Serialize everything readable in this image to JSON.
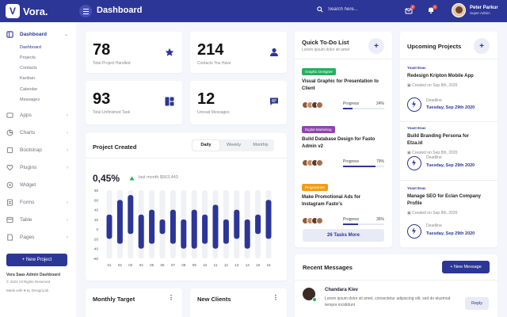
{
  "app": {
    "logo_letter": "V",
    "name": "Vora."
  },
  "header": {
    "title": "Dashboard",
    "search_placeholder": "Search here...",
    "notif_count": "2",
    "alert_count": "1",
    "user_name": "Peter Parkur",
    "user_role": "Super Admin"
  },
  "sidebar": {
    "items": [
      {
        "label": "Dashboard",
        "icon": "home-icon",
        "active": true
      },
      {
        "label": "Apps",
        "icon": "apps-icon"
      },
      {
        "label": "Charts",
        "icon": "chart-icon"
      },
      {
        "label": "Bootstrap",
        "icon": "bootstrap-icon"
      },
      {
        "label": "Plugins",
        "icon": "heart-icon"
      },
      {
        "label": "Widget",
        "icon": "widget-icon"
      },
      {
        "label": "Forms",
        "icon": "forms-icon"
      },
      {
        "label": "Table",
        "icon": "table-icon"
      },
      {
        "label": "Pages",
        "icon": "pages-icon"
      }
    ],
    "subitems": [
      "Dashboard",
      "Projects",
      "Contacts",
      "Kanban",
      "Calendar",
      "Messages"
    ],
    "new_project": "+ New Project",
    "footer_title": "Vora Saas Admin Dashboard",
    "footer_copy": "© 2022 All Rights Reserved",
    "footer_made": "Made with ♥ by DesignLab"
  },
  "stats": [
    {
      "value": "78",
      "label": "Total Project Handled",
      "icon": "star-icon"
    },
    {
      "value": "214",
      "label": "Contacts You Have",
      "icon": "user-icon"
    },
    {
      "value": "93",
      "label": "Total Unfinished Task",
      "icon": "grid-icon"
    },
    {
      "value": "12",
      "label": "Unread Messages",
      "icon": "message-icon"
    }
  ],
  "project_created": {
    "title": "Project Created",
    "tabs": [
      "Daily",
      "Weekly",
      "Monthly"
    ],
    "active_tab": "Daily",
    "value": "0,45%",
    "last_month": "last month $563,443"
  },
  "chart_data": {
    "type": "bar",
    "title": "",
    "categories": [
      "01",
      "02",
      "03",
      "04",
      "05",
      "06",
      "07",
      "08",
      "09",
      "10",
      "11",
      "12",
      "13",
      "14",
      "15",
      "16"
    ],
    "series": [
      {
        "name": "",
        "values": [
          [
            -20,
            30
          ],
          [
            -30,
            60
          ],
          [
            -10,
            70
          ],
          [
            -40,
            30
          ],
          [
            -30,
            40
          ],
          [
            -10,
            20
          ],
          [
            -30,
            40
          ],
          [
            -40,
            20
          ],
          [
            -40,
            40
          ],
          [
            -30,
            30
          ],
          [
            -40,
            50
          ],
          [
            -30,
            20
          ],
          [
            -20,
            40
          ],
          [
            -40,
            20
          ],
          [
            -10,
            30
          ],
          [
            -20,
            60
          ]
        ]
      }
    ],
    "ylim": [
      -60,
      80
    ],
    "yticks": [
      "80",
      "60",
      "40",
      "20",
      "0",
      "-20",
      "-40",
      "-60"
    ],
    "grid": false
  },
  "todo": {
    "title": "Quick To-Do List",
    "subtitle": "Lorem ipsum dolor sit amet",
    "items": [
      {
        "tag": "Graphic Deisgner",
        "tag_color": "#27ae60",
        "title": "Visual Graphic for Presentation to Client",
        "progress_label": "Progress",
        "progress": "24%",
        "fraction": 0.24
      },
      {
        "tag": "Digital Marketing",
        "tag_color": "#8e44ad",
        "title": "Build Database Design for Fasto Admin v2",
        "progress_label": "Progress",
        "progress": "79%",
        "fraction": 0.79
      },
      {
        "tag": "Programmer",
        "tag_color": "#f39c12",
        "title": "Make Promotional Ads for Instagram Fasto's",
        "progress_label": "Progress",
        "progress": "36%",
        "fraction": 0.36
      }
    ],
    "more": "26 Tasks More"
  },
  "upcoming": {
    "title": "Upcoming Projects",
    "items": [
      {
        "client": "Yoast Esac",
        "title": "Redesign Kripton Mobile App",
        "created": "Created on Sep 8th, 2020",
        "deadline_label": "Deadline",
        "deadline": "Tuesday, Sep 29th 2020"
      },
      {
        "client": "Yoast Esac",
        "title": "Build Branding Persona for Etza.id",
        "created": "Created on Sep 8th, 2020",
        "deadline_label": "Deadline",
        "deadline": "Tuesday, Sep 29th 2020"
      },
      {
        "client": "Yoast Esac",
        "title": "Manage SEO for Eclan Company Profile",
        "created": "Created on Sep 8th, 2020",
        "deadline_label": "Deadline",
        "deadline": "Tuesday, Sep 29th 2020"
      }
    ]
  },
  "messages": {
    "title": "Recent Messages",
    "new_btn": "+ New Message",
    "item": {
      "name": "Chandara Kiev",
      "text": "Lorem ipsum dolor sit amet, consectetur adipiscing elit, sed do eiusmod tempor incididunt",
      "reply": "Reply"
    }
  },
  "monthly_target": {
    "title": "Monthly Target"
  },
  "new_clients": {
    "title": "New Clients"
  },
  "colors": {
    "primary": "#2c3696",
    "background": "#f4f6fb",
    "bar_track": "#f0f1f5"
  }
}
